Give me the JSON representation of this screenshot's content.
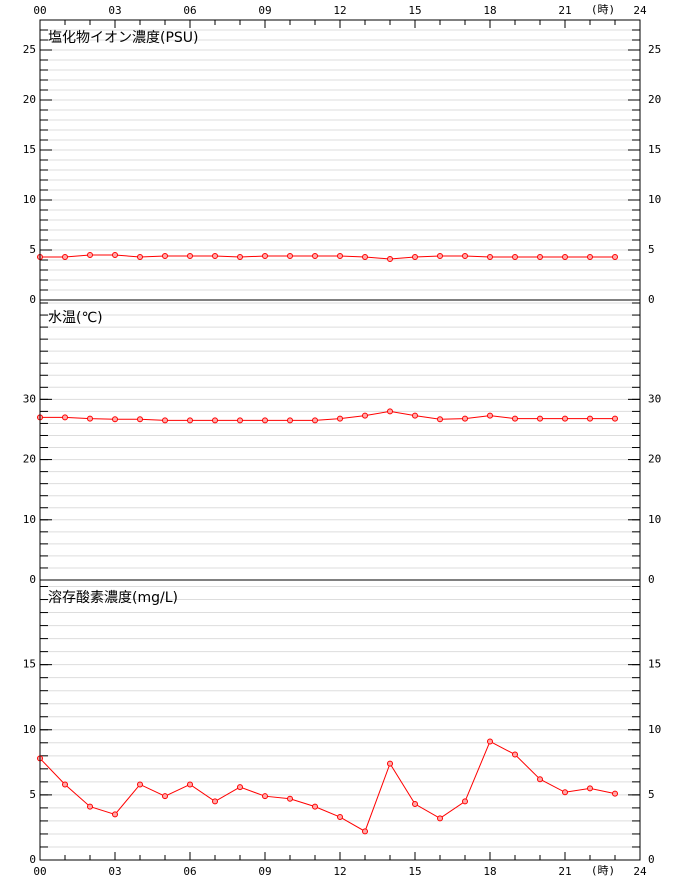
{
  "x_axis": {
    "xlim": [
      0,
      24
    ],
    "xticks": [
      {
        "value": 0,
        "label": "00"
      },
      {
        "value": 3,
        "label": "03"
      },
      {
        "value": 6,
        "label": "06"
      },
      {
        "value": 9,
        "label": "09"
      },
      12,
      15,
      18,
      21,
      24
    ],
    "minor_step": 1,
    "unit": "(時)"
  },
  "chart_data": [
    {
      "type": "line",
      "title": "塩化物イオン濃度(PSU)",
      "x": [
        0,
        1,
        2,
        3,
        4,
        5,
        6,
        7,
        8,
        9,
        10,
        11,
        12,
        13,
        14,
        15,
        16,
        17,
        18,
        19,
        20,
        21,
        22,
        23
      ],
      "series": [
        {
          "color": "#ff0000",
          "values": [
            4.3,
            4.3,
            4.5,
            4.5,
            4.3,
            4.4,
            4.4,
            4.4,
            4.3,
            4.4,
            4.4,
            4.4,
            4.4,
            4.3,
            4.1,
            4.3,
            4.4,
            4.4,
            4.3,
            4.3,
            4.3,
            4.3,
            4.3,
            4.3
          ]
        }
      ],
      "ylim": [
        0,
        28
      ],
      "yticks": [
        0,
        5,
        10,
        15,
        20,
        25
      ],
      "minor_step": 1,
      "grid": true
    },
    {
      "type": "line",
      "title": "水温(℃)",
      "x": [
        0,
        1,
        2,
        3,
        4,
        5,
        6,
        7,
        8,
        9,
        10,
        11,
        12,
        13,
        14,
        15,
        16,
        17,
        18,
        19,
        20,
        21,
        22,
        23
      ],
      "series": [
        {
          "color": "#ff0000",
          "values": [
            27.0,
            27.0,
            26.8,
            26.7,
            26.7,
            26.5,
            26.5,
            26.5,
            26.5,
            26.5,
            26.5,
            26.5,
            26.8,
            27.3,
            28.0,
            27.3,
            26.7,
            26.8,
            27.3,
            26.8,
            26.8,
            26.8,
            26.8,
            26.8
          ]
        }
      ],
      "ylim": [
        0,
        46.5
      ],
      "yticks": [
        0,
        10,
        20,
        30
      ],
      "minor_step": 2,
      "grid": true
    },
    {
      "type": "line",
      "title": "溶存酸素濃度(mg/L)",
      "x": [
        0,
        1,
        2,
        3,
        4,
        5,
        6,
        7,
        8,
        9,
        10,
        11,
        12,
        13,
        14,
        15,
        16,
        17,
        18,
        19,
        20,
        21,
        22,
        23
      ],
      "series": [
        {
          "color": "#ff0000",
          "values": [
            7.8,
            5.8,
            4.1,
            3.5,
            5.8,
            4.9,
            5.8,
            4.5,
            5.6,
            4.9,
            4.7,
            4.1,
            3.3,
            2.2,
            7.4,
            4.3,
            3.2,
            4.5,
            9.1,
            8.1,
            6.2,
            5.2,
            5.5,
            5.1
          ]
        }
      ],
      "ylim": [
        0,
        21.5
      ],
      "yticks": [
        0,
        5,
        10,
        15
      ],
      "minor_step": 1,
      "grid": true
    }
  ]
}
